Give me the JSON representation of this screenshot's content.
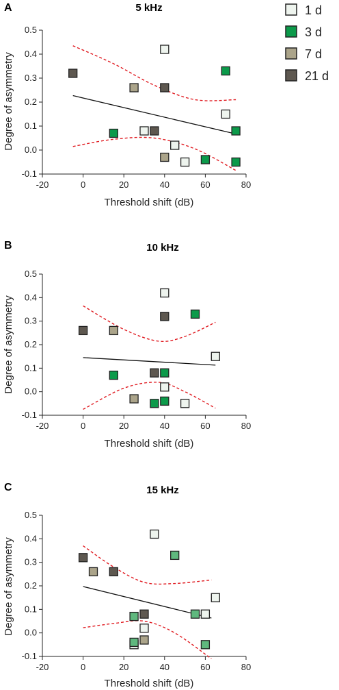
{
  "legend": [
    {
      "label": "1 d",
      "color": "#eef4ee"
    },
    {
      "label": "3 d",
      "color": "#0c9a4a"
    },
    {
      "label": "7 d",
      "color": "#aba48a"
    },
    {
      "label": "21 d",
      "color": "#5e5850"
    }
  ],
  "chart_data": [
    {
      "type": "scatter",
      "panel_label": "A",
      "title": "5 kHz",
      "xlabel": "Threshold shift (dB)",
      "ylabel": "Degree of asymmetry",
      "xlim": [
        -20,
        80
      ],
      "ylim": [
        -0.1,
        0.5
      ],
      "xticks": [
        "-20",
        "0",
        "20",
        "40",
        "60",
        "80"
      ],
      "yticks": [
        "-0.1",
        "0.0",
        "0.1",
        "0.2",
        "0.3",
        "0.4",
        "0.5"
      ],
      "grid": false,
      "series": [
        {
          "name": "1 d",
          "color": "#eef4ee",
          "points": [
            [
              40,
              0.42
            ],
            [
              70,
              0.15
            ],
            [
              30,
              0.08
            ],
            [
              45,
              0.02
            ],
            [
              50,
              -0.05
            ]
          ]
        },
        {
          "name": "3 d",
          "color": "#0c9a4a",
          "points": [
            [
              70,
              0.33
            ],
            [
              15,
              0.07
            ],
            [
              75,
              0.08
            ],
            [
              60,
              -0.04
            ],
            [
              75,
              -0.05
            ]
          ]
        },
        {
          "name": "7 d",
          "color": "#aba48a",
          "points": [
            [
              25,
              0.26
            ],
            [
              40,
              -0.03
            ]
          ]
        },
        {
          "name": "21 d",
          "color": "#5e5850",
          "points": [
            [
              -5,
              0.32
            ],
            [
              40,
              0.26
            ],
            [
              35,
              0.08
            ]
          ]
        }
      ],
      "fit_line": [
        [
          -5,
          0.227
        ],
        [
          75,
          0.067
        ]
      ],
      "confidence_upper": [
        [
          -5,
          0.435
        ],
        [
          15,
          0.36
        ],
        [
          35,
          0.27
        ],
        [
          55,
          0.21
        ],
        [
          75,
          0.21
        ]
      ],
      "confidence_lower": [
        [
          -5,
          0.015
        ],
        [
          15,
          0.045
        ],
        [
          35,
          0.05
        ],
        [
          55,
          0.005
        ],
        [
          75,
          -0.085
        ]
      ]
    },
    {
      "type": "scatter",
      "panel_label": "B",
      "title": "10 kHz",
      "xlabel": "Threshold shift (dB)",
      "ylabel": "Degree of asymmetry",
      "xlim": [
        -20,
        80
      ],
      "ylim": [
        -0.1,
        0.5
      ],
      "xticks": [
        "-20",
        "0",
        "20",
        "40",
        "60",
        "80"
      ],
      "yticks": [
        "-0.1",
        "0.0",
        "0.1",
        "0.2",
        "0.3",
        "0.4",
        "0.5"
      ],
      "grid": false,
      "series": [
        {
          "name": "1 d",
          "color": "#eef4ee",
          "points": [
            [
              40,
              0.42
            ],
            [
              65,
              0.15
            ],
            [
              40,
              0.02
            ],
            [
              50,
              -0.05
            ]
          ]
        },
        {
          "name": "3 d",
          "color": "#0c9a4a",
          "points": [
            [
              55,
              0.33
            ],
            [
              15,
              0.07
            ],
            [
              40,
              0.08
            ],
            [
              35,
              -0.05
            ],
            [
              40,
              -0.04
            ]
          ]
        },
        {
          "name": "7 d",
          "color": "#aba48a",
          "points": [
            [
              15,
              0.26
            ],
            [
              25,
              -0.03
            ]
          ]
        },
        {
          "name": "21 d",
          "color": "#5e5850",
          "points": [
            [
              0,
              0.26
            ],
            [
              40,
              0.32
            ],
            [
              35,
              0.08
            ]
          ]
        }
      ],
      "fit_line": [
        [
          0,
          0.145
        ],
        [
          65,
          0.113
        ]
      ],
      "confidence_upper": [
        [
          0,
          0.365
        ],
        [
          20,
          0.265
        ],
        [
          37,
          0.215
        ],
        [
          50,
          0.235
        ],
        [
          65,
          0.295
        ]
      ],
      "confidence_lower": [
        [
          0,
          -0.075
        ],
        [
          20,
          0.015
        ],
        [
          37,
          0.04
        ],
        [
          50,
          0.0
        ],
        [
          65,
          -0.07
        ]
      ]
    },
    {
      "type": "scatter",
      "panel_label": "C",
      "title": "15 kHz",
      "xlabel": "Threshold shift (dB)",
      "ylabel": "Degree of asymmetry",
      "xlim": [
        -20,
        80
      ],
      "ylim": [
        -0.1,
        0.5
      ],
      "xticks": [
        "-20",
        "0",
        "20",
        "40",
        "60",
        "80"
      ],
      "yticks": [
        "-0.1",
        "0.0",
        "0.1",
        "0.2",
        "0.3",
        "0.4",
        "0.5"
      ],
      "grid": false,
      "series": [
        {
          "name": "1 d",
          "color": "#eef4ee",
          "points": [
            [
              35,
              0.42
            ],
            [
              65,
              0.15
            ],
            [
              60,
              0.08
            ],
            [
              30,
              0.02
            ],
            [
              25,
              -0.05
            ]
          ]
        },
        {
          "name": "3 d",
          "color": "#5fb87e",
          "points": [
            [
              45,
              0.33
            ],
            [
              25,
              0.07
            ],
            [
              55,
              0.08
            ],
            [
              25,
              -0.04
            ],
            [
              60,
              -0.05
            ]
          ]
        },
        {
          "name": "7 d",
          "color": "#aba48a",
          "points": [
            [
              5,
              0.26
            ],
            [
              30,
              -0.03
            ]
          ]
        },
        {
          "name": "21 d",
          "color": "#5e5850",
          "points": [
            [
              0,
              0.32
            ],
            [
              15,
              0.26
            ],
            [
              30,
              0.08
            ]
          ]
        }
      ],
      "fit_line": [
        [
          0,
          0.197
        ],
        [
          63,
          0.063
        ]
      ],
      "confidence_upper": [
        [
          0,
          0.37
        ],
        [
          15,
          0.28
        ],
        [
          30,
          0.215
        ],
        [
          45,
          0.21
        ],
        [
          63,
          0.225
        ]
      ],
      "confidence_lower": [
        [
          0,
          0.022
        ],
        [
          15,
          0.04
        ],
        [
          30,
          0.05
        ],
        [
          45,
          0.0
        ],
        [
          63,
          -0.11
        ]
      ]
    }
  ]
}
